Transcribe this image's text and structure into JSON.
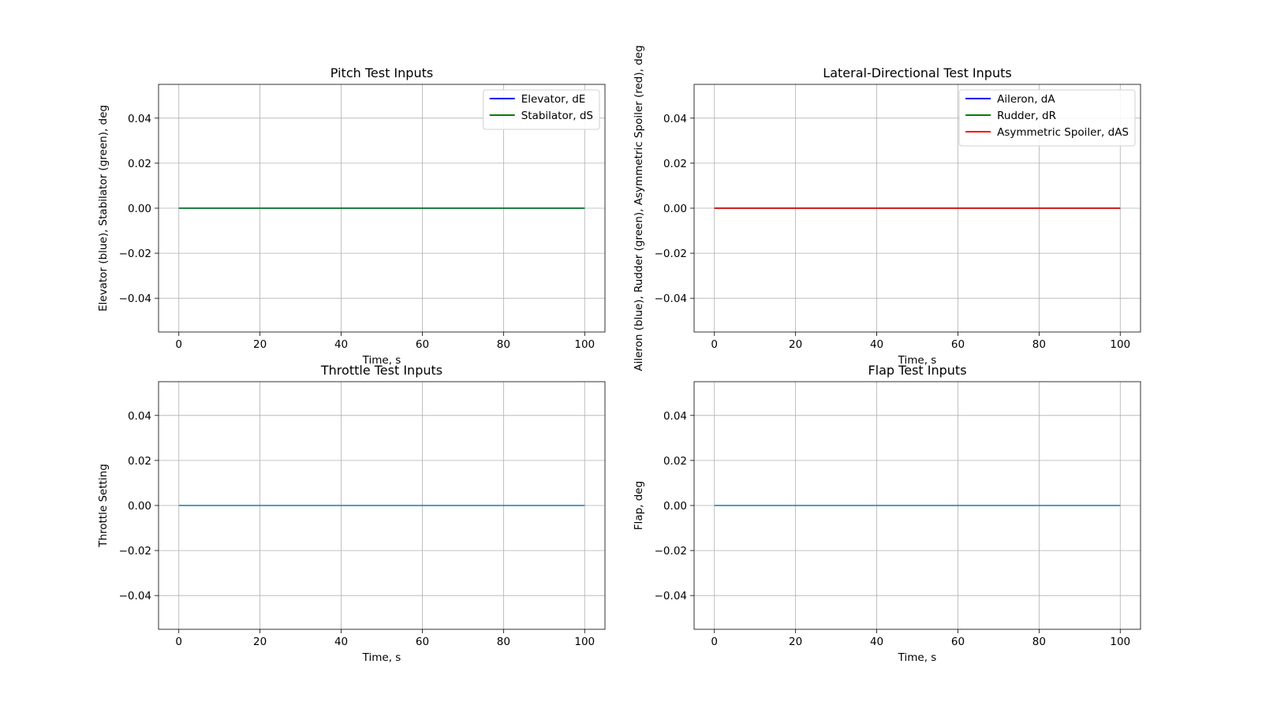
{
  "chart_data": [
    {
      "type": "line",
      "title": "Pitch Test Inputs",
      "xlabel": "Time, s",
      "ylabel": "Elevator (blue), Stabilator (green), deg",
      "xlim": [
        -5,
        105
      ],
      "ylim": [
        -0.055,
        0.055
      ],
      "x_ticks": [
        "0",
        "20",
        "40",
        "60",
        "80",
        "100"
      ],
      "y_ticks": [
        "0.04",
        "0.02",
        "0.00",
        "−0.02",
        "−0.04"
      ],
      "grid": true,
      "legend_position": "top-right",
      "x": [
        0,
        100
      ],
      "series": [
        {
          "name": "Elevator, dE",
          "color": "#0000ff",
          "values": [
            0,
            0
          ]
        },
        {
          "name": "Stabilator, dS",
          "color": "#008000",
          "values": [
            0,
            0
          ]
        }
      ]
    },
    {
      "type": "line",
      "title": "Lateral-Directional Test Inputs",
      "xlabel": "Time, s",
      "ylabel": "Aileron (blue), Rudder (green), Asymmetric Spoiler (red), deg",
      "xlim": [
        -5,
        105
      ],
      "ylim": [
        -0.055,
        0.055
      ],
      "x_ticks": [
        "0",
        "20",
        "40",
        "60",
        "80",
        "100"
      ],
      "y_ticks": [
        "0.04",
        "0.02",
        "0.00",
        "−0.02",
        "−0.04"
      ],
      "grid": true,
      "legend_position": "top-right",
      "x": [
        0,
        100
      ],
      "series": [
        {
          "name": "Aileron, dA",
          "color": "#0000ff",
          "values": [
            0,
            0
          ]
        },
        {
          "name": "Rudder, dR",
          "color": "#008000",
          "values": [
            0,
            0
          ]
        },
        {
          "name": "Asymmetric Spoiler, dAS",
          "color": "#ff0000",
          "values": [
            0,
            0
          ]
        }
      ]
    },
    {
      "type": "line",
      "title": "Throttle Test Inputs",
      "xlabel": "Time, s",
      "ylabel": "Throttle Setting",
      "xlim": [
        -5,
        105
      ],
      "ylim": [
        -0.055,
        0.055
      ],
      "x_ticks": [
        "0",
        "20",
        "40",
        "60",
        "80",
        "100"
      ],
      "y_ticks": [
        "0.04",
        "0.02",
        "0.00",
        "−0.02",
        "−0.04"
      ],
      "grid": true,
      "x": [
        0,
        100
      ],
      "series": [
        {
          "color": "#1f77b4",
          "values": [
            0,
            0
          ]
        }
      ]
    },
    {
      "type": "line",
      "title": "Flap Test Inputs",
      "xlabel": "Time, s",
      "ylabel": "Flap, deg",
      "xlim": [
        -5,
        105
      ],
      "ylim": [
        -0.055,
        0.055
      ],
      "x_ticks": [
        "0",
        "20",
        "40",
        "60",
        "80",
        "100"
      ],
      "y_ticks": [
        "0.04",
        "0.02",
        "0.00",
        "−0.02",
        "−0.04"
      ],
      "grid": true,
      "x": [
        0,
        100
      ],
      "series": [
        {
          "color": "#1f77b4",
          "values": [
            0,
            0
          ]
        }
      ]
    }
  ]
}
